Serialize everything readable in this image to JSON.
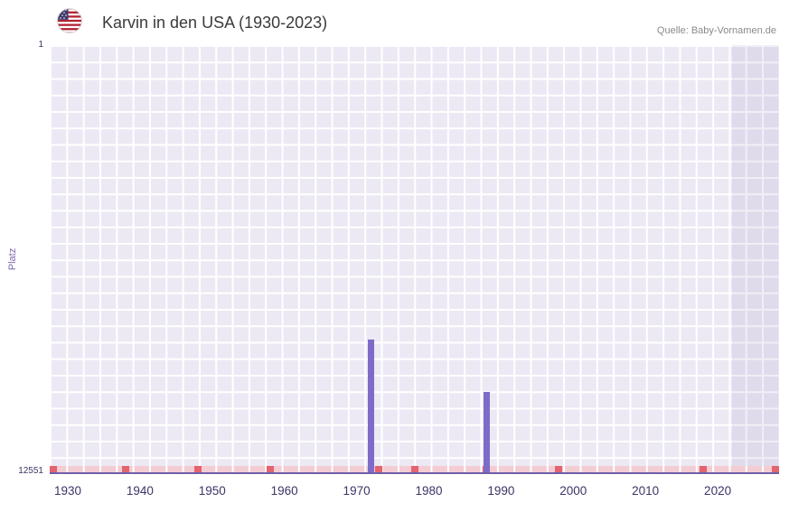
{
  "header": {
    "title": "Karvin in den USA (1930-2023)",
    "source": "Quelle: Baby-Vornamen.de",
    "flag_icon": "us-flag-icon"
  },
  "chart_data": {
    "type": "bar",
    "title": "Karvin in den USA (1930-2023)",
    "xlabel": "",
    "ylabel": "Platz",
    "grid": true,
    "legend": false,
    "y_axis": {
      "inverted": true,
      "min_rank": 1,
      "max_rank": 12551,
      "top_tick_label": "1",
      "bottom_tick_label": "12551"
    },
    "x_axis": {
      "min_year": 1927.5,
      "max_year": 2028.5,
      "tick_years": [
        1930,
        1940,
        1950,
        1960,
        1970,
        1980,
        1990,
        2000,
        2010,
        2020
      ]
    },
    "bars": [
      {
        "year": 1972,
        "rank": 8650
      },
      {
        "year": 1988,
        "rank": 10200
      }
    ],
    "baseline_marks": {
      "rank": 12551,
      "years": [
        1928,
        1938,
        1948,
        1958,
        1973,
        1978,
        1988,
        1998,
        2018,
        2028
      ]
    },
    "highlight_band": {
      "from_year": 2022,
      "to_year": 2028.5
    },
    "colors": {
      "bar": "#7e6bc9",
      "plot_bg": "#ece9f4",
      "grid_line": "#ffffff",
      "axis_line": "#6e5fa8",
      "baseline_strip": "#f4ccd3",
      "baseline_mark": "#e2646f",
      "tick_label": "#3d3466",
      "ylabel_color": "#7b68ae",
      "title_color": "#3a3a3a",
      "source_color": "#8a8a8a"
    }
  }
}
